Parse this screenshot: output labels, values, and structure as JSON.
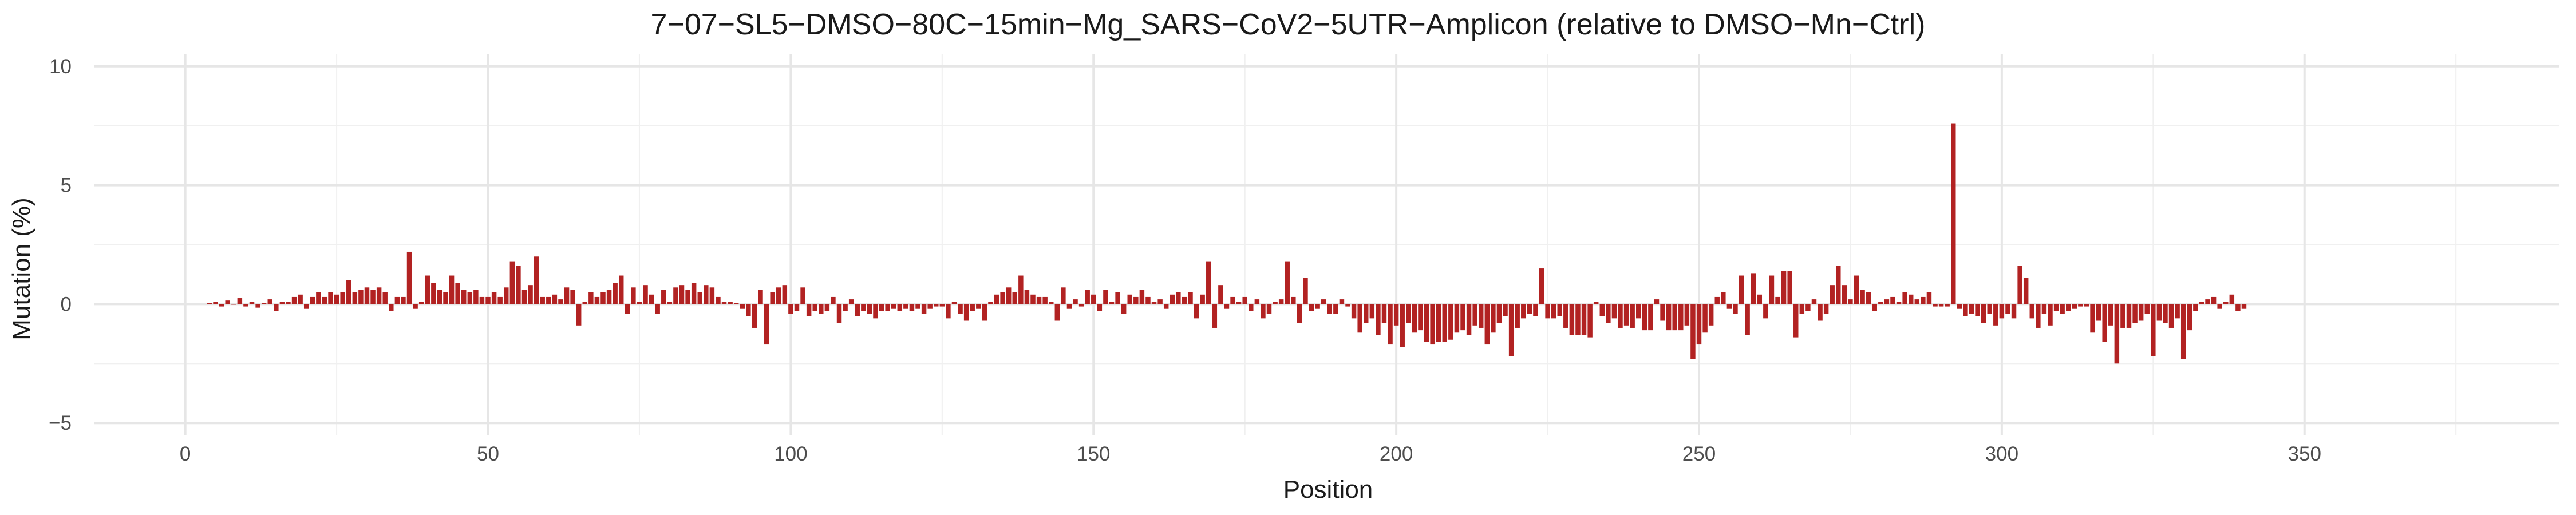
{
  "chart_data": {
    "type": "bar",
    "title": "7−07−SL5−DMSO−80C−15min−Mg_SARS−CoV2−5UTR−Amplicon (relative to DMSO−Mn−Ctrl)",
    "xlabel": "Position",
    "ylabel": "Mutation (%)",
    "xlim": [
      -15,
      392
    ],
    "ylim": [
      -5.5,
      10.5
    ],
    "x_ticks": [
      0,
      50,
      100,
      150,
      200,
      250,
      300,
      350
    ],
    "x_tick_labels": [
      "0",
      "50",
      "100",
      "150",
      "200",
      "250",
      "300",
      "350"
    ],
    "y_ticks": [
      -5,
      0,
      5,
      10
    ],
    "y_tick_labels": [
      "−5",
      "0",
      "5",
      "10"
    ],
    "grid": true,
    "bar_color": "#b22222",
    "x_start": 4,
    "values": [
      0.05,
      0.1,
      -0.1,
      0.15,
      0.0,
      0.25,
      -0.1,
      0.1,
      -0.15,
      0.05,
      0.2,
      -0.3,
      0.1,
      0.1,
      0.3,
      0.4,
      -0.2,
      0.3,
      0.5,
      0.3,
      0.5,
      0.4,
      0.5,
      1.0,
      0.5,
      0.6,
      0.7,
      0.6,
      0.7,
      0.5,
      -0.3,
      0.3,
      0.3,
      2.2,
      -0.2,
      0.1,
      1.2,
      0.9,
      0.6,
      0.5,
      1.2,
      0.9,
      0.6,
      0.5,
      0.6,
      0.3,
      0.3,
      0.5,
      0.3,
      0.7,
      1.8,
      1.6,
      0.6,
      0.8,
      2.0,
      0.3,
      0.3,
      0.4,
      0.2,
      0.7,
      0.6,
      -0.9,
      0.1,
      0.5,
      0.3,
      0.5,
      0.6,
      0.9,
      1.2,
      -0.4,
      0.7,
      0.1,
      0.8,
      0.4,
      -0.4,
      0.6,
      0.1,
      0.7,
      0.8,
      0.6,
      0.9,
      0.5,
      0.8,
      0.7,
      0.3,
      0.1,
      0.1,
      0.05,
      -0.2,
      -0.5,
      -1.0,
      0.6,
      -1.7,
      0.5,
      0.7,
      0.8,
      -0.4,
      -0.3,
      0.7,
      -0.5,
      -0.3,
      -0.4,
      -0.3,
      0.3,
      -0.8,
      -0.3,
      0.2,
      -0.5,
      -0.3,
      -0.4,
      -0.6,
      -0.3,
      -0.3,
      -0.2,
      -0.3,
      -0.2,
      -0.3,
      -0.2,
      -0.4,
      -0.2,
      -0.1,
      -0.1,
      -0.6,
      0.1,
      -0.4,
      -0.7,
      -0.3,
      -0.2,
      -0.7,
      0.1,
      0.4,
      0.5,
      0.7,
      0.5,
      1.2,
      0.6,
      0.4,
      0.3,
      0.3,
      0.1,
      -0.7,
      0.7,
      -0.2,
      0.2,
      -0.1,
      0.6,
      0.4,
      -0.3,
      0.6,
      0.1,
      0.5,
      -0.4,
      0.4,
      0.3,
      0.6,
      0.3,
      0.1,
      0.2,
      -0.2,
      0.4,
      0.5,
      0.3,
      0.5,
      -0.6,
      0.4,
      1.8,
      -1.0,
      0.8,
      -0.2,
      0.3,
      0.1,
      0.3,
      -0.3,
      0.2,
      -0.6,
      -0.4,
      0.1,
      0.2,
      1.8,
      0.3,
      -0.8,
      1.1,
      -0.3,
      -0.2,
      0.2,
      -0.4,
      -0.4,
      0.2,
      -0.1,
      -0.6,
      -1.2,
      -0.8,
      -0.6,
      -1.3,
      -0.8,
      -1.7,
      -0.9,
      -1.8,
      -0.8,
      -1.2,
      -1.1,
      -1.6,
      -1.7,
      -1.6,
      -1.6,
      -1.5,
      -1.2,
      -1.1,
      -1.3,
      -0.9,
      -1.0,
      -1.7,
      -1.2,
      -0.8,
      -0.5,
      -2.2,
      -1.0,
      -0.6,
      -0.4,
      -0.5,
      1.5,
      -0.6,
      -0.6,
      -0.5,
      -1.0,
      -1.3,
      -1.3,
      -1.3,
      -1.4,
      0.1,
      -0.5,
      -0.8,
      -0.6,
      -1.0,
      -0.9,
      -1.0,
      -0.6,
      -1.1,
      -1.1,
      0.2,
      -0.7,
      -1.1,
      -1.1,
      -1.1,
      -0.9,
      -2.3,
      -1.7,
      -1.2,
      -0.9,
      0.3,
      0.5,
      -0.2,
      -0.4,
      1.2,
      -1.3,
      1.3,
      0.4,
      -0.6,
      1.2,
      0.3,
      1.4,
      1.4,
      -1.4,
      -0.4,
      -0.3,
      0.2,
      -0.7,
      -0.4,
      0.8,
      1.6,
      0.8,
      0.2,
      1.2,
      0.6,
      0.5,
      -0.3,
      0.1,
      0.2,
      0.3,
      0.1,
      0.5,
      0.4,
      0.2,
      0.3,
      0.5,
      -0.1,
      -0.1,
      -0.1,
      7.6,
      -0.2,
      -0.5,
      -0.4,
      -0.5,
      -0.8,
      -0.4,
      -0.9,
      -0.6,
      -0.4,
      -0.6,
      1.6,
      1.1,
      -0.6,
      -1.0,
      -0.4,
      -0.9,
      -0.3,
      -0.4,
      -0.3,
      -0.2,
      -0.1,
      -0.1,
      -1.2,
      -0.7,
      -1.6,
      -0.9,
      -2.5,
      -1.0,
      -1.0,
      -0.8,
      -0.7,
      -0.4,
      -2.2,
      -0.7,
      -0.8,
      -1.0,
      -0.6,
      -2.3,
      -1.1,
      -0.3,
      0.1,
      0.2,
      0.3,
      -0.2,
      0.1,
      0.4,
      -0.3,
      -0.2
    ]
  }
}
